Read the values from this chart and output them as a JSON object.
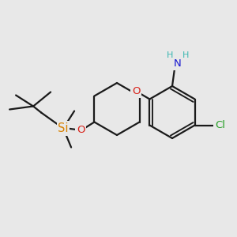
{
  "background_color": "#e8e8e8",
  "bond_color": "#1a1a1a",
  "bond_width": 1.6,
  "atom_colors": {
    "C": "#1a1a1a",
    "H": "#3cb8b2",
    "N": "#1818d0",
    "O": "#d82018",
    "Cl": "#28a028",
    "Si": "#d88000"
  },
  "fs_main": 9.5,
  "fs_small": 8.0,
  "fs_si": 10.5
}
